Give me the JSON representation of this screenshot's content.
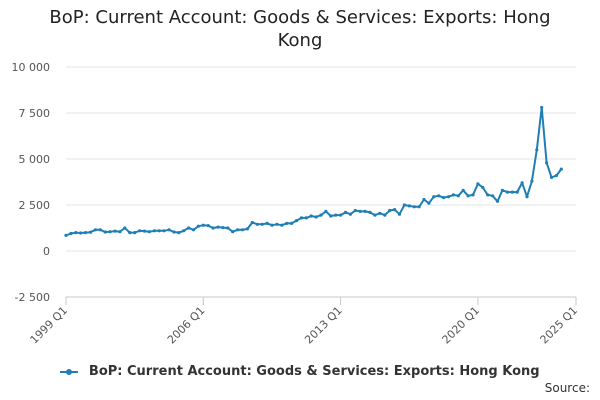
{
  "chart_data": {
    "type": "line",
    "title": "BoP: Current Account: Goods & Services: Exports: Hong Kong",
    "xlabel": "",
    "ylabel": "",
    "x_tick_labels": [
      "1999 Q1",
      "2006 Q1",
      "2013 Q1",
      "2020 Q1",
      "2025 Q1"
    ],
    "y_tick_labels": [
      "10 000",
      "7 500",
      "5 000",
      "2 500",
      "0",
      "-2 500"
    ],
    "y_ticks": [
      10000,
      7500,
      5000,
      2500,
      0,
      -2500
    ],
    "ylim": [
      -2500,
      10000
    ],
    "xlim": [
      "1999 Q1",
      "2025 Q1"
    ],
    "grid": "horizontal",
    "legend_position": "bottom",
    "color": "#1f7fb5",
    "series": [
      {
        "name": "BoP: Current Account: Goods & Services: Exports: Hong Kong",
        "values": [
          850,
          950,
          1000,
          980,
          1000,
          1020,
          1150,
          1150,
          1030,
          1050,
          1080,
          1050,
          1250,
          1000,
          1000,
          1100,
          1080,
          1050,
          1100,
          1100,
          1100,
          1150,
          1030,
          1000,
          1100,
          1250,
          1150,
          1350,
          1400,
          1380,
          1250,
          1300,
          1270,
          1250,
          1050,
          1150,
          1150,
          1200,
          1550,
          1450,
          1450,
          1500,
          1400,
          1450,
          1400,
          1500,
          1500,
          1650,
          1800,
          1800,
          1900,
          1850,
          1950,
          2150,
          1900,
          1950,
          1950,
          2100,
          2000,
          2200,
          2150,
          2150,
          2100,
          1950,
          2050,
          1950,
          2200,
          2250,
          2000,
          2500,
          2450,
          2400,
          2400,
          2800,
          2600,
          2950,
          3000,
          2900,
          2950,
          3050,
          3000,
          3300,
          3000,
          3050,
          3650,
          3450,
          3050,
          3000,
          2700,
          3300,
          3200,
          3200,
          3200,
          3700,
          2950,
          3800,
          5500,
          7800,
          4800,
          4000,
          4100,
          4450
        ]
      }
    ]
  },
  "legend": {
    "label": "BoP: Current Account: Goods & Services: Exports: Hong Kong"
  },
  "source_label": "Source:"
}
